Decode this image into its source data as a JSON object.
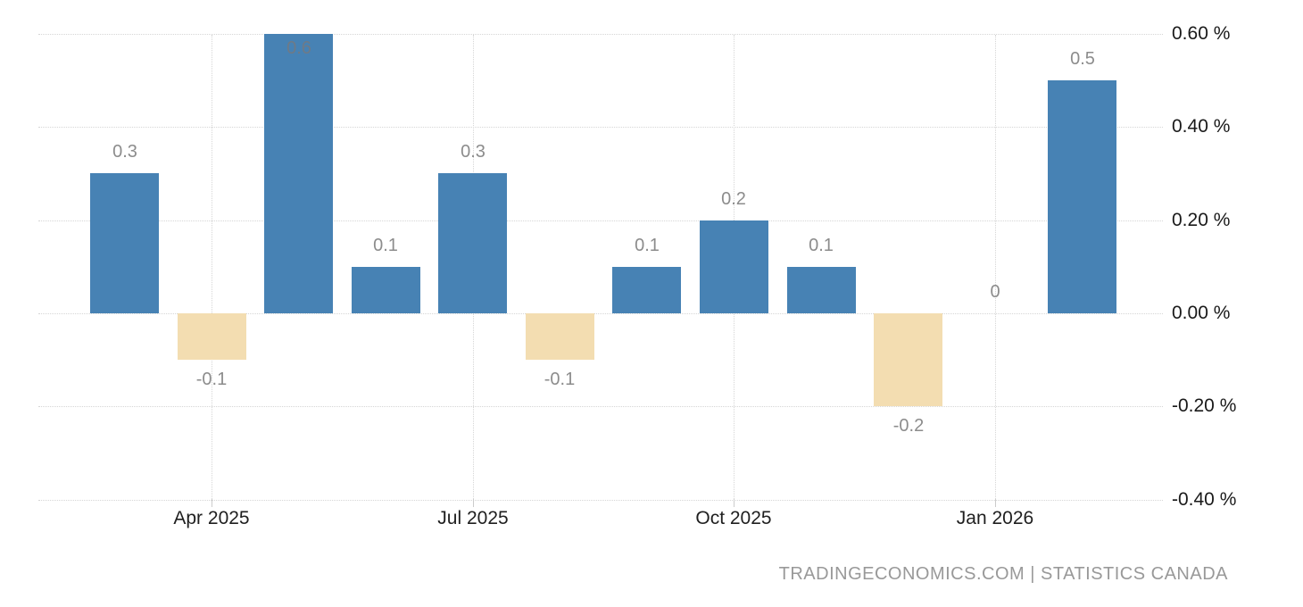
{
  "chart_data": {
    "type": "bar",
    "title": "",
    "xlabel": "",
    "ylabel": "",
    "values": [
      0.3,
      -0.1,
      0.6,
      0.1,
      0.3,
      -0.1,
      0.1,
      0.2,
      0.1,
      -0.2,
      0,
      0.5
    ],
    "value_labels": [
      "0.3",
      "-0.1",
      "0.6",
      "0.1",
      "0.3",
      "-0.1",
      "0.1",
      "0.2",
      "0.1",
      "-0.2",
      "0",
      "0.5"
    ],
    "x_ticks": [
      {
        "bar_index": 1,
        "label": "Apr 2025"
      },
      {
        "bar_index": 4,
        "label": "Jul 2025"
      },
      {
        "bar_index": 7,
        "label": "Oct 2025"
      },
      {
        "bar_index": 10,
        "label": "Jan 2026"
      }
    ],
    "y_ticks": [
      {
        "value": 0.6,
        "label": "0.60 %"
      },
      {
        "value": 0.4,
        "label": "0.40 %"
      },
      {
        "value": 0.2,
        "label": "0.20 %"
      },
      {
        "value": 0.0,
        "label": "0.00 %"
      },
      {
        "value": -0.2,
        "label": "-0.20 %"
      },
      {
        "value": -0.4,
        "label": "-0.40 %"
      }
    ],
    "ylim": [
      -0.4,
      0.6
    ],
    "grid": "dotted",
    "legend": "none",
    "colors": {
      "positive_bar": "#4782b4",
      "negative_bar": "#f3ddb1",
      "gridline": "#d6d6d6",
      "value_label": "#8c8c8c",
      "axis_label": "#1f1f1f",
      "attribution": "#999999"
    }
  },
  "footer": {
    "attribution": "TRADINGECONOMICS.COM | STATISTICS CANADA"
  }
}
